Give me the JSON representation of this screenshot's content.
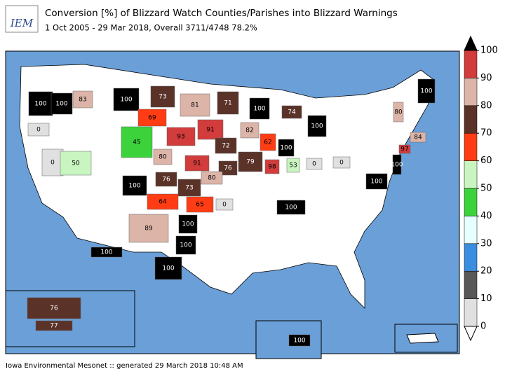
{
  "header": {
    "logo": "IEM",
    "title": "Conversion [%] of Blizzard Watch Counties/Parishes into Blizzard Warnings",
    "subtitle": "1 Oct 2005 - 29 Mar 2018, Overall 3711/4748 78.2%"
  },
  "regions": [
    {
      "value": 100
    },
    {
      "value": 100
    },
    {
      "value": 83
    },
    {
      "value": 100
    },
    {
      "value": 73
    },
    {
      "value": 81
    },
    {
      "value": 71
    },
    {
      "value": 100
    },
    {
      "value": 74
    },
    {
      "value": 0
    },
    {
      "value": 69
    },
    {
      "value": 93
    },
    {
      "value": 91
    },
    {
      "value": 82
    },
    {
      "value": 100
    },
    {
      "value": 100
    },
    {
      "value": 80
    },
    {
      "value": 84
    },
    {
      "value": 97
    },
    {
      "value": 45
    },
    {
      "value": 80
    },
    {
      "value": 72
    },
    {
      "value": 62
    },
    {
      "value": 100
    },
    {
      "value": 0
    },
    {
      "value": 50
    },
    {
      "value": 91
    },
    {
      "value": 76
    },
    {
      "value": 79
    },
    {
      "value": 98
    },
    {
      "value": 53
    },
    {
      "value": 0
    },
    {
      "value": 0
    },
    {
      "value": 100
    },
    {
      "value": 80
    },
    {
      "value": 100
    },
    {
      "value": 76
    },
    {
      "value": 73
    },
    {
      "value": 100
    },
    {
      "value": 64
    },
    {
      "value": 65
    },
    {
      "value": 0
    },
    {
      "value": 100
    },
    {
      "value": 89
    },
    {
      "value": 100
    },
    {
      "value": 100
    },
    {
      "value": 100
    },
    {
      "value": 100
    },
    {
      "value": 76
    },
    {
      "value": 77
    },
    {
      "value": 100
    }
  ],
  "colorbar": {
    "ticks": [
      0,
      10,
      20,
      30,
      40,
      50,
      60,
      70,
      80,
      90,
      100
    ],
    "colors": [
      "#e0e0e0",
      "#585858",
      "#3a8ee0",
      "#e6ffff",
      "#3cd23c",
      "#c8f5c0",
      "#ff3c14",
      "#5a3228",
      "#dcb4a8",
      "#d23c3c"
    ],
    "over_color": "#000000"
  },
  "footer": "Iowa Environmental Mesonet :: generated 29 March 2018 10:48 AM"
}
